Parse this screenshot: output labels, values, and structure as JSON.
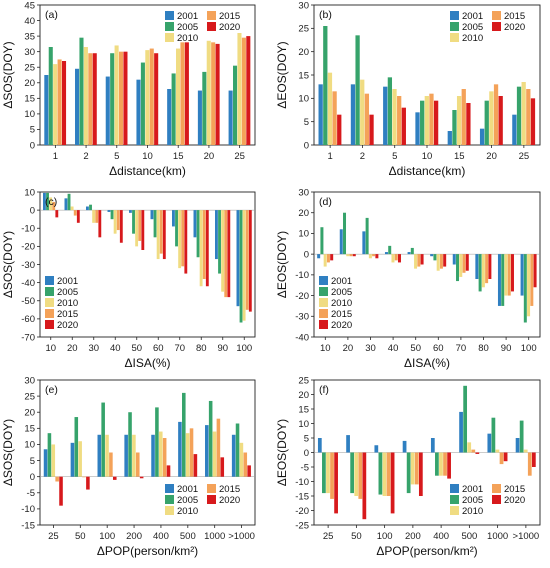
{
  "colors": {
    "2001": "#2f7fc1",
    "2005": "#36a36b",
    "2010": "#f0dc82",
    "2015": "#f4a259",
    "2020": "#d7191c"
  },
  "chart_data": [
    {
      "id": "a",
      "type": "bar",
      "panel_label": "(a)",
      "xlabel": "Δdistance(km)",
      "ylabel": "ΔSOS(DOY)",
      "categories": [
        "1",
        "2",
        "5",
        "10",
        "15",
        "20",
        "25"
      ],
      "ylim": [
        0,
        45
      ],
      "yticks": [
        0,
        5,
        10,
        15,
        20,
        25,
        30,
        35,
        40,
        45
      ],
      "legend": "top-right",
      "legend_cols": 2,
      "series": [
        {
          "name": "2001",
          "values": [
            22.5,
            24.5,
            22,
            21,
            18,
            17.5,
            17.5
          ]
        },
        {
          "name": "2005",
          "values": [
            31.5,
            34.5,
            29.5,
            26.5,
            23,
            23.5,
            25.5
          ]
        },
        {
          "name": "2010",
          "values": [
            26,
            31.5,
            32,
            30.5,
            31,
            33.5,
            36
          ]
        },
        {
          "name": "2015",
          "values": [
            27.5,
            29.5,
            30,
            31,
            33,
            33,
            34.5
          ]
        },
        {
          "name": "2020",
          "values": [
            27,
            29.5,
            30,
            29.5,
            33,
            32.5,
            35
          ]
        }
      ]
    },
    {
      "id": "b",
      "type": "bar",
      "panel_label": "(b)",
      "xlabel": "Δdistance(km)",
      "ylabel": "ΔEOS(DOY)",
      "categories": [
        "1",
        "2",
        "5",
        "10",
        "15",
        "20",
        "25"
      ],
      "ylim": [
        0,
        30
      ],
      "yticks": [
        0,
        5,
        10,
        15,
        20,
        25,
        30
      ],
      "legend": "top-right",
      "legend_cols": 2,
      "series": [
        {
          "name": "2001",
          "values": [
            13,
            13,
            12.5,
            7,
            3,
            3.5,
            6.5
          ]
        },
        {
          "name": "2005",
          "values": [
            25.5,
            23.5,
            14.5,
            9.5,
            7.5,
            9.5,
            12.5
          ]
        },
        {
          "name": "2010",
          "values": [
            15.5,
            14,
            12,
            10.5,
            10.5,
            11.5,
            13.5
          ]
        },
        {
          "name": "2015",
          "values": [
            11.5,
            11,
            10.5,
            11,
            12,
            13,
            12
          ]
        },
        {
          "name": "2020",
          "values": [
            6.5,
            6.5,
            8,
            9.5,
            9,
            10.5,
            10
          ]
        }
      ]
    },
    {
      "id": "c",
      "type": "bar",
      "panel_label": "(c)",
      "xlabel": "ΔISA(%)",
      "ylabel": "ΔSOS(DOY)",
      "categories": [
        "10",
        "20",
        "30",
        "40",
        "50",
        "60",
        "70",
        "80",
        "90",
        "100"
      ],
      "ylim": [
        -70,
        10
      ],
      "yticks": [
        -70,
        -60,
        -50,
        -40,
        -30,
        -20,
        -10,
        0,
        10
      ],
      "legend": "bottom-left",
      "legend_cols": 1,
      "series": [
        {
          "name": "2001",
          "values": [
            9.5,
            6.5,
            2,
            -1,
            -1.5,
            -5,
            -9,
            -15,
            -27,
            -53
          ]
        },
        {
          "name": "2005",
          "values": [
            9.5,
            9,
            3,
            -5,
            -13,
            -15,
            -20,
            -26,
            -35,
            -62
          ]
        },
        {
          "name": "2010",
          "values": [
            7,
            2,
            -7,
            -13,
            -20,
            -27,
            -32,
            -42,
            -45,
            -61
          ]
        },
        {
          "name": "2015",
          "values": [
            4.5,
            -3,
            -7,
            -11,
            -17,
            -24,
            -31,
            -38,
            -48,
            -55
          ]
        },
        {
          "name": "2020",
          "values": [
            -4,
            -7,
            -15,
            -18,
            -22,
            -27,
            -35,
            -42,
            -48,
            -56
          ]
        }
      ]
    },
    {
      "id": "d",
      "type": "bar",
      "panel_label": "(d)",
      "xlabel": "ΔISA(%)",
      "ylabel": "ΔEOS(DOY)",
      "categories": [
        "10",
        "20",
        "30",
        "40",
        "50",
        "60",
        "70",
        "80",
        "90",
        "100"
      ],
      "ylim": [
        -40,
        30
      ],
      "yticks": [
        -40,
        -30,
        -20,
        -10,
        0,
        10,
        20,
        30
      ],
      "legend": "bottom-left",
      "legend_cols": 1,
      "series": [
        {
          "name": "2001",
          "values": [
            -2,
            12,
            11,
            1,
            1,
            -1,
            -5,
            -12,
            -25,
            -20
          ]
        },
        {
          "name": "2005",
          "values": [
            13,
            20,
            17.5,
            4,
            3,
            -3,
            -13,
            -18,
            -25,
            -33
          ]
        },
        {
          "name": "2010",
          "values": [
            -6,
            -1,
            -2,
            -4,
            -7,
            -8,
            -11,
            -16,
            -20,
            -30
          ]
        },
        {
          "name": "2015",
          "values": [
            -4,
            -1,
            -1,
            -3,
            -6,
            -7,
            -9,
            -14,
            -20,
            -25
          ]
        },
        {
          "name": "2020",
          "values": [
            -3,
            -1,
            -2,
            -4,
            -5,
            -6,
            -8,
            -12,
            -18,
            -16
          ]
        }
      ]
    },
    {
      "id": "e",
      "type": "bar",
      "panel_label": "(e)",
      "xlabel": "ΔPOP(person/km²)",
      "ylabel": "ΔSOS(DOY)",
      "categories": [
        "25",
        "50",
        "100",
        "200",
        "400",
        "500",
        "1000",
        ">1000"
      ],
      "ylim": [
        -15,
        30
      ],
      "yticks": [
        -15,
        -10,
        -5,
        0,
        5,
        10,
        15,
        20,
        25,
        30
      ],
      "legend": "bottom-right",
      "legend_cols": 2,
      "series": [
        {
          "name": "2001",
          "values": [
            8.5,
            10.5,
            13,
            13,
            13,
            17,
            16,
            13
          ]
        },
        {
          "name": "2005",
          "values": [
            13.5,
            18.5,
            23,
            20,
            21.5,
            26,
            23.5,
            16.5
          ]
        },
        {
          "name": "2010",
          "values": [
            10,
            11,
            13,
            13,
            14,
            13.5,
            14,
            10.5
          ]
        },
        {
          "name": "2015",
          "values": [
            -1.5,
            0,
            7.5,
            7.5,
            12,
            15,
            18,
            7.5
          ]
        },
        {
          "name": "2020",
          "values": [
            -9,
            -4,
            -1,
            -0.5,
            3.5,
            7,
            6,
            3.5
          ]
        }
      ]
    },
    {
      "id": "f",
      "type": "bar",
      "panel_label": "(f)",
      "xlabel": "ΔPOP(person/km²)",
      "ylabel": "ΔEOS(DOY)",
      "categories": [
        "25",
        "50",
        "100",
        "200",
        "400",
        "500",
        "1000",
        ">1000"
      ],
      "ylim": [
        -25,
        25
      ],
      "yticks": [
        -25,
        -20,
        -15,
        -10,
        -5,
        0,
        5,
        10,
        15,
        20,
        25
      ],
      "legend": "bottom-right",
      "legend_cols": 2,
      "series": [
        {
          "name": "2001",
          "values": [
            5,
            6,
            2.5,
            4,
            5,
            14,
            6.5,
            5
          ]
        },
        {
          "name": "2005",
          "values": [
            -14,
            -14,
            -14.5,
            -14,
            -8,
            23,
            12,
            11
          ]
        },
        {
          "name": "2010",
          "values": [
            -14,
            -15,
            -15,
            -11,
            -8,
            3.5,
            1,
            1
          ]
        },
        {
          "name": "2015",
          "values": [
            -16,
            -16,
            -15,
            -11,
            -8,
            1,
            -4,
            -8
          ]
        },
        {
          "name": "2020",
          "values": [
            -21,
            -23,
            -21,
            -15,
            -9,
            -0.5,
            -3,
            -5
          ]
        }
      ]
    }
  ]
}
